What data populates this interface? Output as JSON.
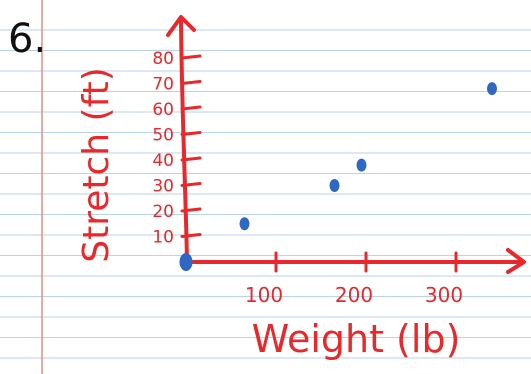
{
  "problem_number": "6.",
  "chart_data": {
    "type": "scatter",
    "xlabel": "Weight (lb)",
    "ylabel": "Stretch (ft)",
    "x_ticks": [
      100,
      200,
      300
    ],
    "y_ticks": [
      10,
      20,
      30,
      40,
      50,
      60,
      70,
      80
    ],
    "xlim": [
      0,
      360
    ],
    "ylim": [
      0,
      85
    ],
    "points": [
      {
        "x": 0,
        "y": 0
      },
      {
        "x": 65,
        "y": 15
      },
      {
        "x": 165,
        "y": 30
      },
      {
        "x": 195,
        "y": 38
      },
      {
        "x": 340,
        "y": 68
      }
    ],
    "grid": false
  },
  "colors": {
    "ink": "#e8282b",
    "dots": "#2f67c4",
    "pen": "#111111",
    "rule_line": "#b9d3ea",
    "margin_line": "#e88a8a"
  }
}
